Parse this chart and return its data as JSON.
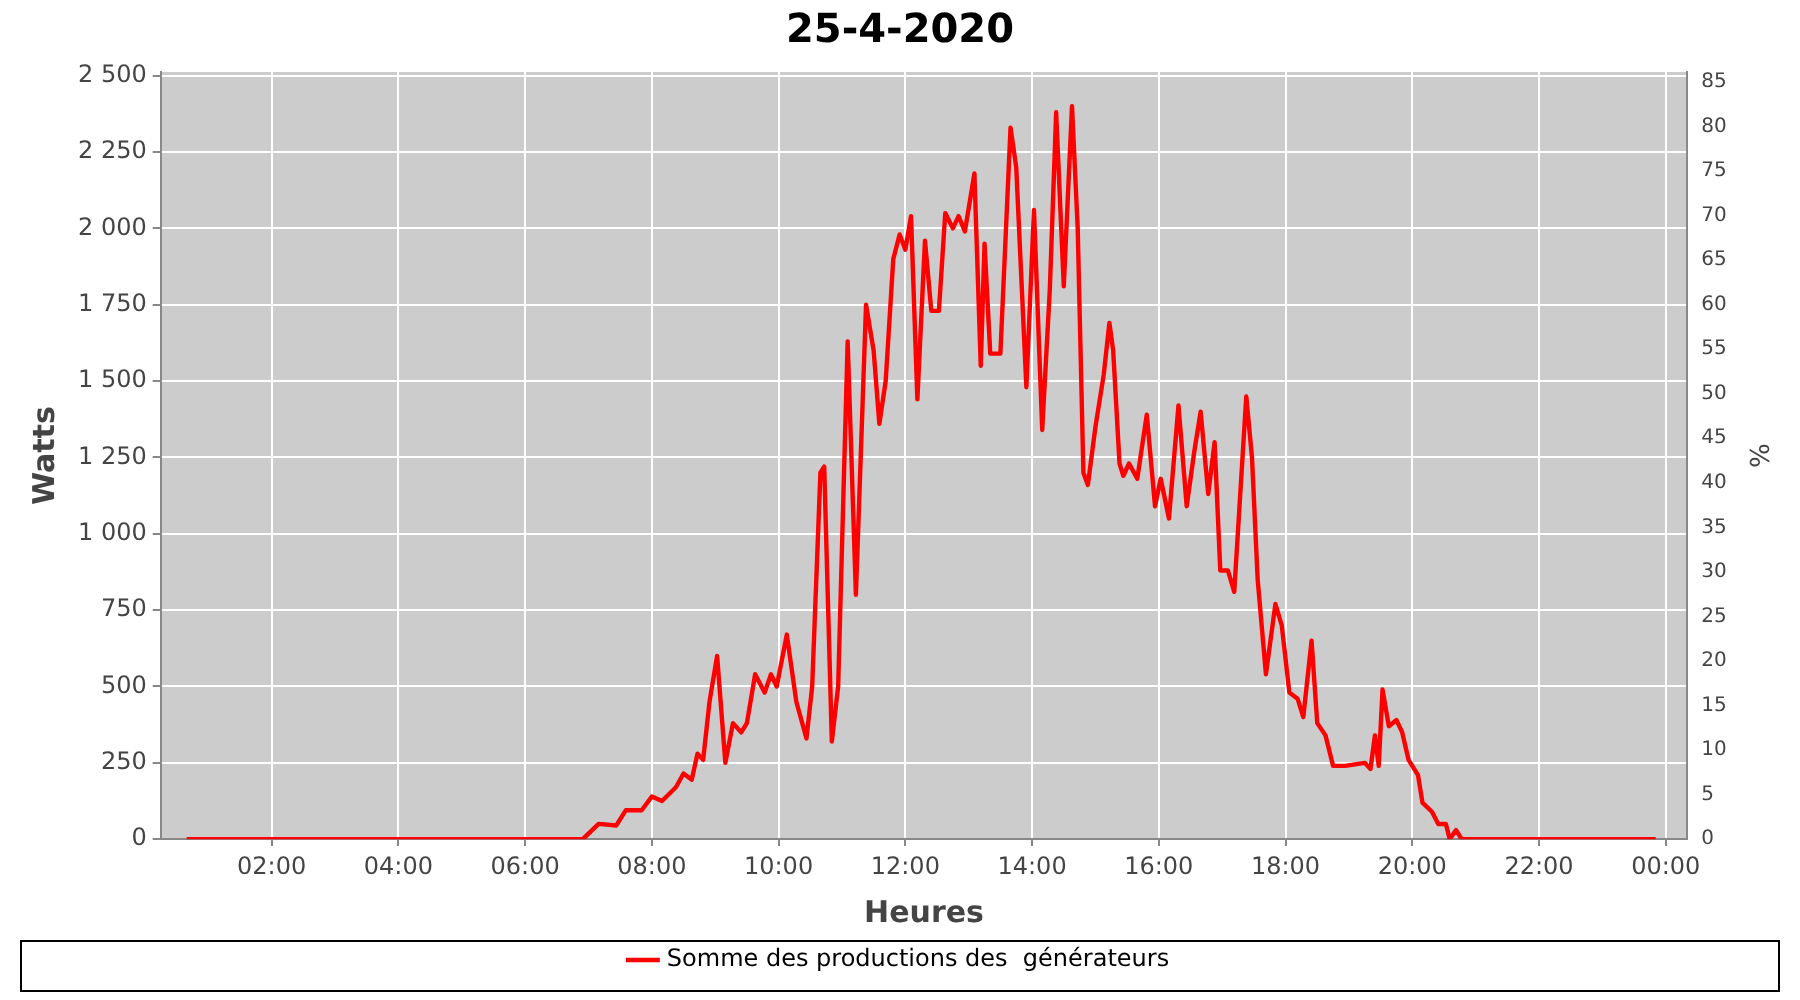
{
  "chart_data": {
    "type": "line",
    "title": "25-4-2020",
    "xlabel": "Heures",
    "ylabel": "Watts",
    "y2label": "%",
    "xlim": [
      0.25,
      24.34
    ],
    "xticks": [
      {
        "value": 2,
        "label": "02:00"
      },
      {
        "value": 4,
        "label": "04:00"
      },
      {
        "value": 6,
        "label": "06:00"
      },
      {
        "value": 8,
        "label": "08:00"
      },
      {
        "value": 10,
        "label": "10:00"
      },
      {
        "value": 12,
        "label": "12:00"
      },
      {
        "value": 14,
        "label": "14:00"
      },
      {
        "value": 16,
        "label": "16:00"
      },
      {
        "value": 18,
        "label": "18:00"
      },
      {
        "value": 20,
        "label": "20:00"
      },
      {
        "value": 22,
        "label": "22:00"
      },
      {
        "value": 24,
        "label": "00:00"
      }
    ],
    "ylim": [
      0,
      2512
    ],
    "yticks": [
      0,
      250,
      500,
      750,
      {
        "value": 1000,
        "label": "1 000"
      },
      {
        "value": 1250,
        "label": "1 250"
      },
      {
        "value": 1500,
        "label": "1 500"
      },
      {
        "value": 1750,
        "label": "1 750"
      },
      {
        "value": 2000,
        "label": "2 000"
      },
      {
        "value": 2250,
        "label": "2 250"
      },
      {
        "value": 2500,
        "label": "2 500"
      }
    ],
    "y2lim": [
      0,
      86.1
    ],
    "y2ticks": [
      0,
      5,
      10,
      15,
      20,
      25,
      30,
      35,
      40,
      45,
      50,
      55,
      60,
      65,
      70,
      75,
      80,
      85
    ],
    "grid": true,
    "legend": "bottom",
    "marker": "none",
    "line_style": "solid",
    "series": [
      {
        "name": "Somme des productions des  générateurs",
        "color": "#ff0000",
        "x": [
          0.66,
          6.91,
          7.16,
          7.44,
          7.59,
          7.84,
          8.0,
          8.16,
          8.38,
          8.5,
          8.63,
          8.72,
          8.81,
          8.91,
          9.03,
          9.16,
          9.28,
          9.41,
          9.5,
          9.63,
          9.78,
          9.88,
          9.97,
          10.13,
          10.28,
          10.44,
          10.53,
          10.66,
          10.72,
          10.84,
          10.94,
          11.09,
          11.22,
          11.38,
          11.5,
          11.59,
          11.69,
          11.81,
          11.91,
          12.0,
          12.09,
          12.19,
          12.31,
          12.41,
          12.53,
          12.63,
          12.75,
          12.84,
          12.94,
          13.09,
          13.19,
          13.25,
          13.34,
          13.5,
          13.66,
          13.75,
          13.91,
          14.03,
          14.16,
          14.28,
          14.38,
          14.5,
          14.63,
          14.72,
          14.81,
          14.88,
          15.0,
          15.13,
          15.22,
          15.28,
          15.38,
          15.44,
          15.53,
          15.66,
          15.81,
          15.94,
          16.03,
          16.16,
          16.31,
          16.44,
          16.56,
          16.66,
          16.78,
          16.88,
          16.97,
          17.09,
          17.19,
          17.38,
          17.47,
          17.56,
          17.69,
          17.84,
          17.94,
          18.06,
          18.19,
          18.28,
          18.41,
          18.5,
          18.63,
          18.75,
          18.94,
          19.25,
          19.34,
          19.41,
          19.47,
          19.53,
          19.63,
          19.75,
          19.84,
          19.94,
          20.09,
          20.16,
          20.31,
          20.41,
          20.53,
          20.59,
          20.69,
          20.78,
          23.84
        ],
        "values": [
          0,
          0,
          50,
          45,
          95,
          95,
          140,
          125,
          170,
          215,
          195,
          280,
          260,
          450,
          600,
          250,
          380,
          350,
          380,
          540,
          480,
          540,
          500,
          670,
          450,
          330,
          500,
          1200,
          1220,
          320,
          500,
          1630,
          800,
          1750,
          1600,
          1360,
          1500,
          1900,
          1980,
          1930,
          2040,
          1440,
          1960,
          1730,
          1730,
          2050,
          2000,
          2040,
          1990,
          2180,
          1550,
          1950,
          1590,
          1590,
          2330,
          2200,
          1480,
          2060,
          1340,
          1800,
          2380,
          1810,
          2400,
          2000,
          1200,
          1160,
          1350,
          1520,
          1690,
          1600,
          1230,
          1190,
          1230,
          1180,
          1390,
          1090,
          1180,
          1050,
          1420,
          1090,
          1270,
          1400,
          1130,
          1300,
          880,
          880,
          810,
          1450,
          1250,
          850,
          540,
          770,
          700,
          480,
          460,
          400,
          650,
          380,
          340,
          240,
          240,
          250,
          230,
          340,
          240,
          490,
          370,
          390,
          350,
          260,
          210,
          120,
          90,
          50,
          50,
          0,
          30,
          0,
          0
        ]
      }
    ]
  }
}
